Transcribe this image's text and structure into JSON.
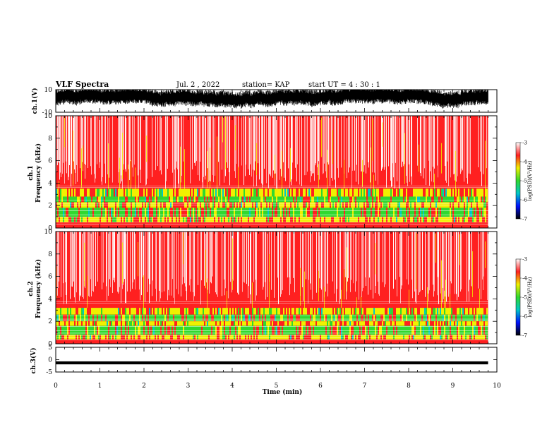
{
  "header": {
    "title": "VLF Spectra",
    "date": "Jul. 2 , 2022",
    "station": "station= KAP",
    "start": "start UT = 4 : 30 : 1"
  },
  "colors": {
    "red": "#ff2020",
    "white": "#ffffff",
    "yellow": "#f0f000",
    "green": "#30d830",
    "cyan": "#00c8c8",
    "blue": "#0010ff",
    "black": "#000000"
  },
  "chart_data": [
    {
      "type": "line",
      "ylabel": "ch.1(V)",
      "ylim": [
        -10,
        10
      ],
      "yticks": [
        "10",
        "-10"
      ],
      "xlim": [
        0,
        10
      ],
      "note_values": "noisy waveform oscillating roughly between -5 V and +9 V"
    },
    {
      "type": "heatmap",
      "ylabel": "ch.1\nFrequency (kHz)",
      "ylabel_lines": [
        "ch.1",
        "Frequency (kHz)"
      ],
      "ylim": [
        0,
        10
      ],
      "yticks": [
        "0",
        "2",
        "4",
        "6",
        "8",
        "10"
      ],
      "xlim": [
        0,
        10
      ],
      "data_end_min": 9.8,
      "colorbar": {
        "label": "log(PSD)(V²/Hz)",
        "range": [
          -7,
          -3
        ],
        "ticks": [
          "-3",
          "-4",
          "-5",
          "-6",
          "-7"
        ]
      }
    },
    {
      "type": "heatmap",
      "ylabel": "ch.2\nFrequency (kHz)",
      "ylabel_lines": [
        "ch.2",
        "Frequency (kHz)"
      ],
      "ylim": [
        0,
        10
      ],
      "yticks": [
        "0",
        "2",
        "4",
        "6",
        "8",
        "10"
      ],
      "xlim": [
        0,
        10
      ],
      "data_end_min": 9.8,
      "colorbar": {
        "label": "log(PSD)(V²/Hz)",
        "range": [
          -7,
          -3
        ],
        "ticks": [
          "-3",
          "-4",
          "-5",
          "-6",
          "-7"
        ]
      }
    },
    {
      "type": "line",
      "ylabel": "ch.3(V)",
      "ylim": [
        -5,
        5
      ],
      "yticks": [
        "5",
        "0",
        "-5"
      ],
      "xlim": [
        0,
        10
      ],
      "note_values": "flat near -1 V with small jitter",
      "xlabel": "Time (min)",
      "xticks": [
        "0",
        "1",
        "2",
        "3",
        "4",
        "5",
        "6",
        "7",
        "8",
        "9",
        "10"
      ]
    }
  ]
}
